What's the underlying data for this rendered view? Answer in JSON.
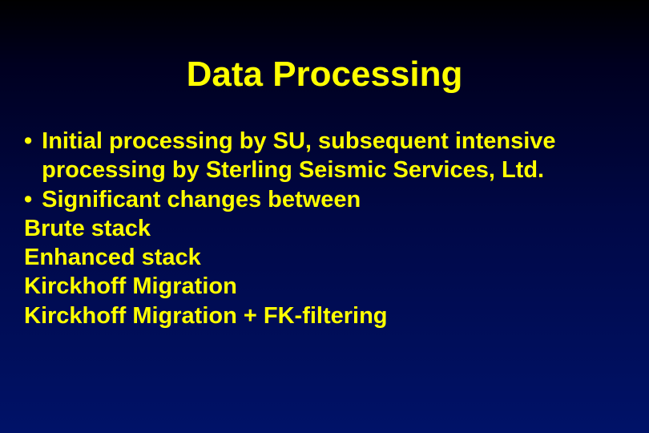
{
  "slide": {
    "title": "Data Processing",
    "bullets": [
      "Initial processing by SU, subsequent intensive processing by Sterling Seismic Services, Ltd.",
      "Significant changes between"
    ],
    "lines": [
      "Brute stack",
      "Enhanced stack",
      "Kirckhoff Migration",
      "Kirckhoff Migration + FK-filtering"
    ],
    "style": {
      "background_gradient_top": "#000000",
      "background_gradient_bottom": "#001268",
      "text_color": "#ffff00",
      "title_fontsize": 44,
      "body_fontsize": 29,
      "font_weight": "bold",
      "font_family": "Arial"
    }
  }
}
